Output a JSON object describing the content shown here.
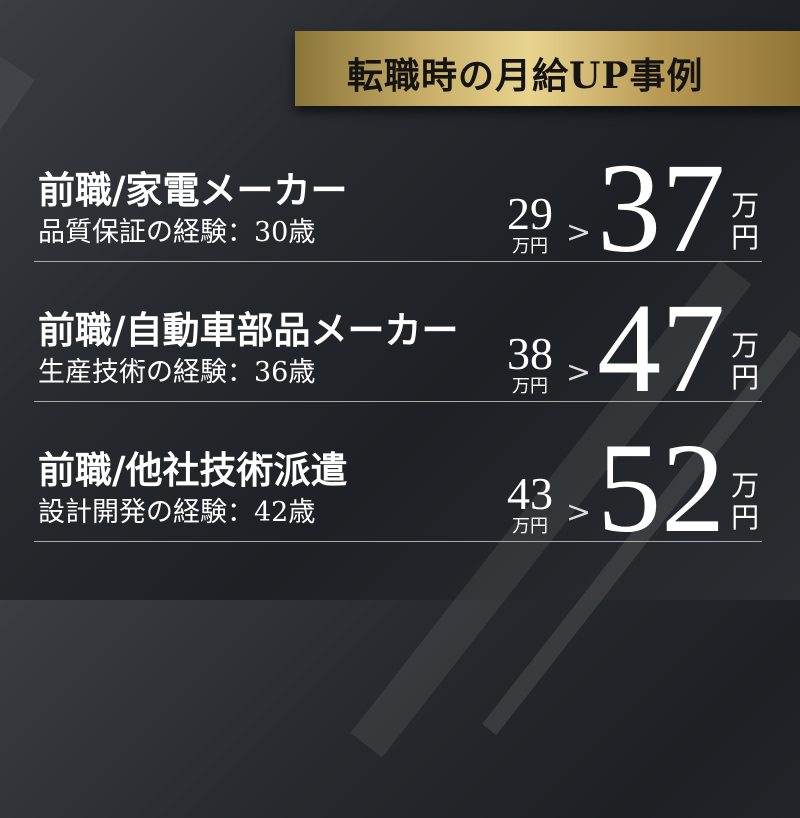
{
  "header": {
    "title": "転職時の月給UP事例"
  },
  "cases": [
    {
      "title": "前職/家電メーカー",
      "subtitle": "品質保証の経験：30歳",
      "before": "29",
      "before_unit": "万円",
      "arrow": ">",
      "after": "37",
      "after_unit_1": "万",
      "after_unit_2": "円"
    },
    {
      "title": "前職/自動車部品メーカー",
      "subtitle": "生産技術の経験：36歳",
      "before": "38",
      "before_unit": "万円",
      "arrow": ">",
      "after": "47",
      "after_unit_1": "万",
      "after_unit_2": "円"
    },
    {
      "title": "前職/他社技術派遣",
      "subtitle": "設計開発の経験：42歳",
      "before": "43",
      "before_unit": "万円",
      "arrow": ">",
      "after": "52",
      "after_unit_1": "万",
      "after_unit_2": "円"
    }
  ],
  "colors": {
    "background": "#26292d",
    "banner_gold": "#c7ad68",
    "text": "#ffffff"
  }
}
